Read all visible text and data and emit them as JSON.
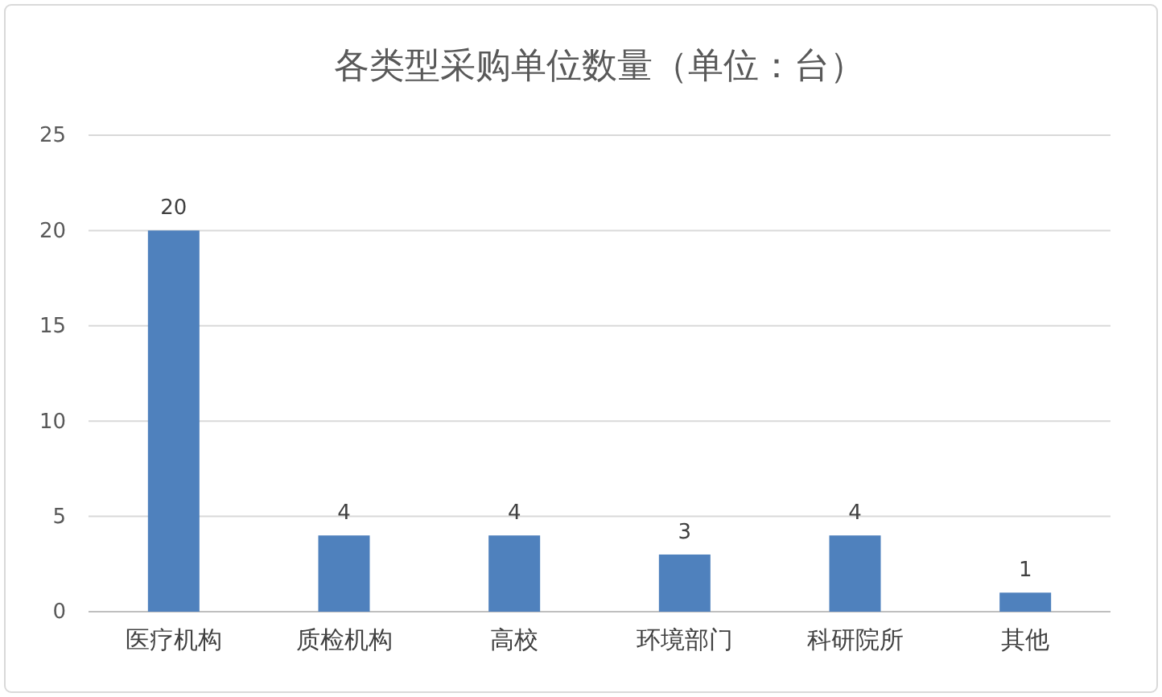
{
  "chart_data": {
    "type": "bar",
    "title": "各类型采购单位数量（单位：台）",
    "categories": [
      "医疗机构",
      "质检机构",
      "高校",
      "环境部门",
      "科研院所",
      "其他"
    ],
    "values": [
      20,
      4,
      4,
      3,
      4,
      1
    ],
    "color": "#4f81bd",
    "ylim": [
      0,
      25
    ],
    "yticks": [
      0,
      5,
      10,
      15,
      20,
      25
    ],
    "grid": "y",
    "data_labels": true
  }
}
